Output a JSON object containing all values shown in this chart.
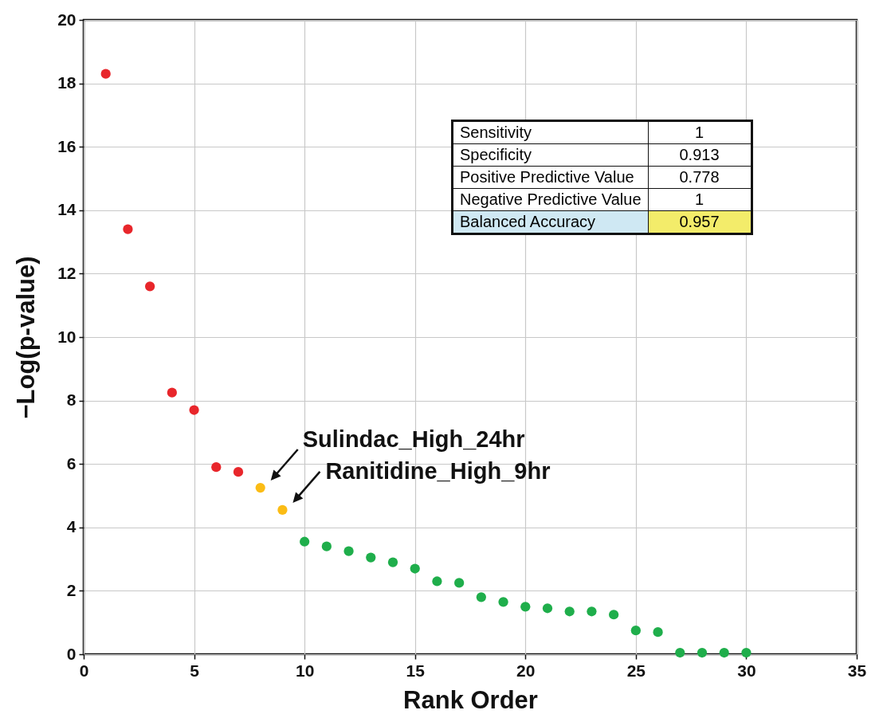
{
  "chart_data": {
    "type": "scatter",
    "xlabel": "Rank Order",
    "ylabel": "−Log(p-value)",
    "xlim": [
      0,
      35
    ],
    "xticks": [
      0,
      5,
      10,
      15,
      20,
      25,
      30,
      35
    ],
    "ylim": [
      0,
      20
    ],
    "yticks": [
      0,
      2,
      4,
      6,
      8,
      10,
      12,
      14,
      16,
      18,
      20
    ],
    "grid": true,
    "marker": "circle",
    "series": [
      {
        "color": "#e8262b",
        "x": [
          1,
          2,
          3,
          4,
          5,
          6,
          7
        ],
        "values": [
          18.3,
          13.4,
          11.6,
          8.25,
          7.7,
          5.9,
          5.75
        ]
      },
      {
        "color": "#fbbc15",
        "x": [
          8,
          9
        ],
        "values": [
          5.25,
          4.55
        ]
      },
      {
        "color": "#1fae4b",
        "x": [
          10,
          11,
          12,
          13,
          14,
          15,
          16,
          17,
          18,
          19,
          20,
          21,
          22,
          23,
          24,
          25,
          26,
          27,
          28,
          29,
          30
        ],
        "values": [
          3.55,
          3.4,
          3.25,
          3.05,
          2.9,
          2.7,
          2.3,
          2.25,
          1.8,
          1.65,
          1.5,
          1.45,
          1.35,
          1.35,
          1.25,
          0.75,
          0.7,
          0.05,
          0.05,
          0.05,
          0.05
        ]
      }
    ],
    "annotations": [
      {
        "text": "Sulindac_High_24hr",
        "x": 8,
        "y": 5.25
      },
      {
        "text": "Ranitidine_High_9hr",
        "x": 9,
        "y": 4.55
      },
      "Sensitivity",
      "1",
      "Specificity",
      "0.913",
      "Positive Predictive Value",
      "0.778",
      "Negative Predictive Value",
      "1",
      "Balanced Accuracy",
      "0.957"
    ]
  }
}
